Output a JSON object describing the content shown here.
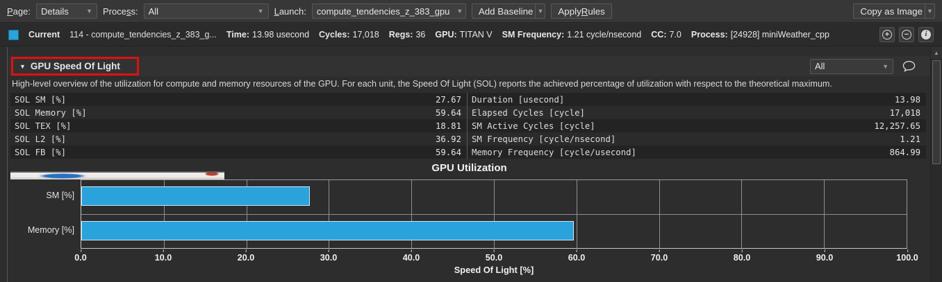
{
  "toolbar": {
    "page_label": "Page:",
    "page_value": "Details",
    "process_label": "Process:",
    "process_value": "All",
    "launch_label": "Launch:",
    "launch_value": "compute_tendencies_z_383_gpu",
    "add_baseline": "Add Baseline",
    "apply_rules": "Apply Rules",
    "copy_as_image": "Copy as Image"
  },
  "current_row": {
    "legend_color": "#2aa2db",
    "label": "Current",
    "kernel": "114 - compute_tendencies_z_383_g...",
    "stats": [
      {
        "label": "Time:",
        "value": "13.98 usecond"
      },
      {
        "label": "Cycles:",
        "value": "17,018"
      },
      {
        "label": "Regs:",
        "value": "36"
      },
      {
        "label": "GPU:",
        "value": "TITAN V"
      },
      {
        "label": "SM Frequency:",
        "value": "1.21 cycle/nsecond"
      },
      {
        "label": "CC:",
        "value": "7.0"
      },
      {
        "label": "Process:",
        "value": "[24928] miniWeather_cpp"
      }
    ]
  },
  "section": {
    "title": "GPU Speed Of Light",
    "filter_value": "All",
    "description": "High-level overview of the utilization for compute and memory resources of the GPU. For each unit, the Speed Of Light (SOL) reports the achieved percentage of utilization with respect to the theoretical maximum.",
    "annotation_color": "#dd1111"
  },
  "metrics": {
    "left": [
      {
        "label": "SOL SM [%]",
        "value": "27.67"
      },
      {
        "label": "SOL Memory [%]",
        "value": "59.64"
      },
      {
        "label": "SOL TEX [%]",
        "value": "18.81"
      },
      {
        "label": "SOL L2 [%]",
        "value": "36.92"
      },
      {
        "label": "SOL FB [%]",
        "value": "59.64"
      }
    ],
    "right": [
      {
        "label": "Duration [usecond]",
        "value": "13.98"
      },
      {
        "label": "Elapsed Cycles [cycle]",
        "value": "17,018"
      },
      {
        "label": "SM Active Cycles [cycle]",
        "value": "12,257.65"
      },
      {
        "label": "SM Frequency [cycle/nsecond]",
        "value": "1.21"
      },
      {
        "label": "Memory Frequency [cycle/usecond]",
        "value": "864.99"
      }
    ]
  },
  "chart_data": {
    "type": "bar",
    "orientation": "horizontal",
    "title": "GPU Utilization",
    "categories": [
      "SM [%]",
      "Memory [%]"
    ],
    "values": [
      27.67,
      59.64
    ],
    "xlabel": "Speed Of Light [%]",
    "xlim": [
      0,
      100
    ],
    "xticks": [
      0,
      10,
      20,
      30,
      40,
      50,
      60,
      70,
      80,
      90,
      100
    ],
    "xtick_labels": [
      "0.0",
      "10.0",
      "20.0",
      "30.0",
      "40.0",
      "50.0",
      "60.0",
      "70.0",
      "80.0",
      "90.0",
      "100.0"
    ],
    "bar_color": "#2aa2db",
    "grid": true,
    "legend_position": "none"
  }
}
